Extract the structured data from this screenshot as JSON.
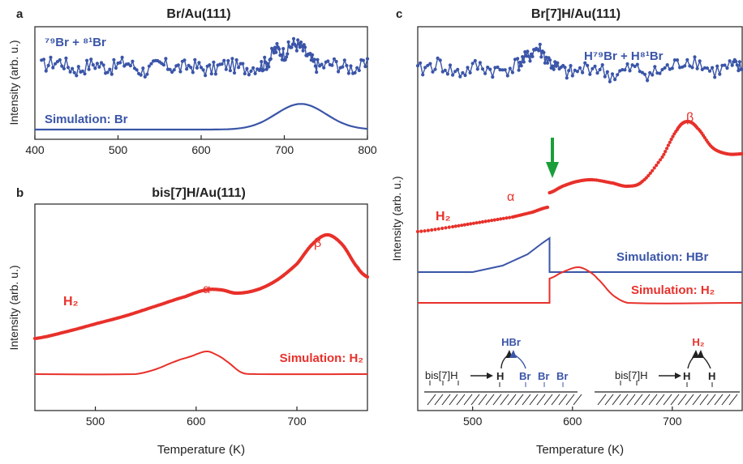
{
  "colors": {
    "red": "#e8302a",
    "blue": "#3a55a8",
    "green": "#1a9e3a",
    "black": "#222222"
  },
  "chart_data": [
    {
      "panel": "a",
      "type": "line",
      "title": "Br/Au(111)",
      "ylabel": "Intensity (arb. u.)",
      "xlim": [
        400,
        800
      ],
      "xticks": [
        "400",
        "500",
        "600",
        "700",
        "800"
      ],
      "series": [
        {
          "name": "⁷⁹Br + ⁸¹Br",
          "kind": "noisy-dots",
          "color": "#3a55a8",
          "x": [
            408,
            430,
            450,
            470,
            490,
            510,
            530,
            550,
            570,
            590,
            610,
            630,
            650,
            670,
            680,
            690,
            700,
            710,
            720,
            730,
            740,
            760,
            780,
            800
          ],
          "y": [
            0.62,
            0.66,
            0.58,
            0.64,
            0.6,
            0.65,
            0.57,
            0.63,
            0.6,
            0.62,
            0.58,
            0.63,
            0.6,
            0.62,
            0.66,
            0.78,
            0.74,
            0.83,
            0.8,
            0.7,
            0.62,
            0.64,
            0.6,
            0.62
          ]
        },
        {
          "name": "Simulation: Br",
          "kind": "gaussian",
          "color": "#3a55a8",
          "center": 720,
          "width": 30,
          "height": 0.25
        }
      ],
      "labels": {
        "series1": "⁷⁹Br + ⁸¹Br",
        "sim": "Simulation: Br"
      }
    },
    {
      "panel": "b",
      "type": "line",
      "title": "bis[7]H/Au(111)",
      "ylabel": "Intensity (arb. u.)",
      "xlim": [
        440,
        770
      ],
      "xticks": [
        "500",
        "600",
        "700"
      ],
      "xlabel": "Temperature (K)",
      "series": [
        {
          "name": "H₂",
          "kind": "dots",
          "color": "#e8302a",
          "x": [
            440,
            470,
            500,
            530,
            560,
            590,
            610,
            625,
            640,
            660,
            680,
            700,
            715,
            730,
            745,
            760,
            770
          ],
          "y": [
            0.22,
            0.26,
            0.31,
            0.36,
            0.42,
            0.48,
            0.52,
            0.52,
            0.5,
            0.52,
            0.58,
            0.68,
            0.8,
            0.86,
            0.8,
            0.66,
            0.6
          ]
        },
        {
          "name": "Simulation: H₂",
          "kind": "line",
          "color": "#e8302a",
          "x": [
            440,
            540,
            560,
            580,
            595,
            610,
            620,
            630,
            645,
            660,
            770
          ],
          "y": [
            0.0,
            0.0,
            0.03,
            0.08,
            0.11,
            0.14,
            0.12,
            0.08,
            0.01,
            0.0,
            0.0
          ]
        }
      ],
      "labels": {
        "h2": "H₂",
        "alpha": "α",
        "beta": "β",
        "sim": "Simulation: H₂"
      }
    },
    {
      "panel": "c",
      "type": "line",
      "title": "Br[7]H/Au(111)",
      "ylabel": "Intensity (arb. u.)",
      "xlim": [
        445,
        770
      ],
      "xticks": [
        "500",
        "600",
        "700"
      ],
      "xlabel": "Temperature (K)",
      "series": [
        {
          "name": "H⁷⁹Br + H⁸¹Br",
          "kind": "noisy-dots",
          "color": "#3a55a8",
          "x": [
            445,
            465,
            485,
            505,
            525,
            545,
            555,
            565,
            575,
            585,
            600,
            620,
            640,
            660,
            680,
            700,
            720,
            740,
            760,
            770
          ],
          "y": [
            0.6,
            0.66,
            0.58,
            0.64,
            0.6,
            0.66,
            0.72,
            0.8,
            0.7,
            0.62,
            0.58,
            0.64,
            0.56,
            0.62,
            0.58,
            0.64,
            0.7,
            0.6,
            0.64,
            0.62
          ]
        },
        {
          "name": "H₂",
          "kind": "dots",
          "color": "#e8302a",
          "x": [
            445,
            480,
            510,
            540,
            560,
            575,
            577,
            590,
            605,
            620,
            640,
            655,
            670,
            690,
            705,
            715,
            725,
            740,
            755,
            770
          ],
          "y": [
            0.12,
            0.15,
            0.18,
            0.21,
            0.24,
            0.27,
            0.36,
            0.4,
            0.43,
            0.44,
            0.42,
            0.4,
            0.43,
            0.58,
            0.75,
            0.8,
            0.76,
            0.64,
            0.6,
            0.6
          ]
        },
        {
          "name": "Simulation: HBr",
          "kind": "line",
          "color": "#3a55a8",
          "x": [
            445,
            500,
            530,
            555,
            570,
            577,
            577,
            770
          ],
          "y": [
            0.0,
            0.0,
            0.04,
            0.11,
            0.18,
            0.21,
            0.0,
            0.0
          ]
        },
        {
          "name": "Simulation: H₂",
          "kind": "line",
          "color": "#e8302a",
          "x": [
            445,
            577,
            577,
            590,
            605,
            615,
            625,
            640,
            655,
            770
          ],
          "y": [
            0.0,
            0.0,
            0.15,
            0.19,
            0.22,
            0.2,
            0.15,
            0.05,
            0.0,
            0.0
          ]
        }
      ],
      "labels": {
        "series1": "H⁷⁹Br + H⁸¹Br",
        "h2": "H₂",
        "alpha": "α",
        "beta": "β",
        "sim_hbr": "Simulation: HBr",
        "sim_h2": "Simulation: H₂"
      },
      "schematic": {
        "left": {
          "molecule": "bis[7]H",
          "h": "H",
          "br": [
            "Br",
            "Br",
            "Br"
          ],
          "product": "HBr"
        },
        "right": {
          "molecule": "bis[7]H",
          "h": [
            "H",
            "H"
          ],
          "product": "H₂"
        }
      }
    }
  ]
}
